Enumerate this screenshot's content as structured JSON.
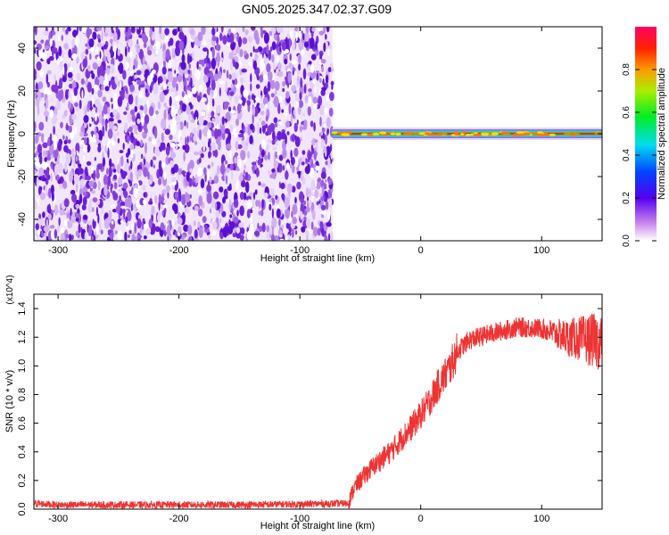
{
  "title": "GN05.2025.347.02.37.G09",
  "chart_data": [
    {
      "type": "heatmap",
      "xlabel": "Height of straight line (km)",
      "ylabel": "Frequency (Hz)",
      "xlim": [
        -320,
        150
      ],
      "ylim": [
        -50,
        50
      ],
      "x_ticks": [
        -300,
        -200,
        -100,
        0,
        100
      ],
      "y_ticks": [
        -40,
        -20,
        0,
        20,
        40
      ],
      "noise_region_x": [
        -320,
        -73
      ],
      "signal_region_x": [
        -73,
        150
      ],
      "signal_frequency_hz": 0,
      "colorbar": {
        "label": "Normalized spectral amplitude",
        "range": [
          0,
          1
        ],
        "ticks": [
          "0.0",
          "0.2",
          "0.4",
          "0.6",
          "0.8"
        ]
      }
    },
    {
      "type": "line",
      "xlabel": "Height of straight line (km)",
      "ylabel": "SNR (10 * v/v)",
      "y_multiplier": "(x10^4)",
      "xlim": [
        -320,
        150
      ],
      "ylim": [
        0,
        1.5
      ],
      "x_ticks": [
        -300,
        -200,
        -100,
        0,
        100
      ],
      "y_ticks": [
        "0.0",
        "0.2",
        "0.4",
        "0.6",
        "0.8",
        "1.0",
        "1.2",
        "1.4"
      ],
      "line_color": "#ee3333",
      "points": [
        {
          "x": -320,
          "y": 0.04
        },
        {
          "x": -300,
          "y": 0.03
        },
        {
          "x": -250,
          "y": 0.03
        },
        {
          "x": -200,
          "y": 0.03
        },
        {
          "x": -150,
          "y": 0.03
        },
        {
          "x": -100,
          "y": 0.035
        },
        {
          "x": -60,
          "y": 0.04
        },
        {
          "x": -55,
          "y": 0.15
        },
        {
          "x": -45,
          "y": 0.25
        },
        {
          "x": -35,
          "y": 0.33
        },
        {
          "x": -25,
          "y": 0.4
        },
        {
          "x": -15,
          "y": 0.5
        },
        {
          "x": -5,
          "y": 0.6
        },
        {
          "x": 5,
          "y": 0.72
        },
        {
          "x": 15,
          "y": 0.87
        },
        {
          "x": 25,
          "y": 1.0
        },
        {
          "x": 30,
          "y": 1.1
        },
        {
          "x": 40,
          "y": 1.18
        },
        {
          "x": 60,
          "y": 1.23
        },
        {
          "x": 80,
          "y": 1.27
        },
        {
          "x": 100,
          "y": 1.26
        },
        {
          "x": 120,
          "y": 1.2
        },
        {
          "x": 150,
          "y": 1.17
        }
      ]
    }
  ]
}
